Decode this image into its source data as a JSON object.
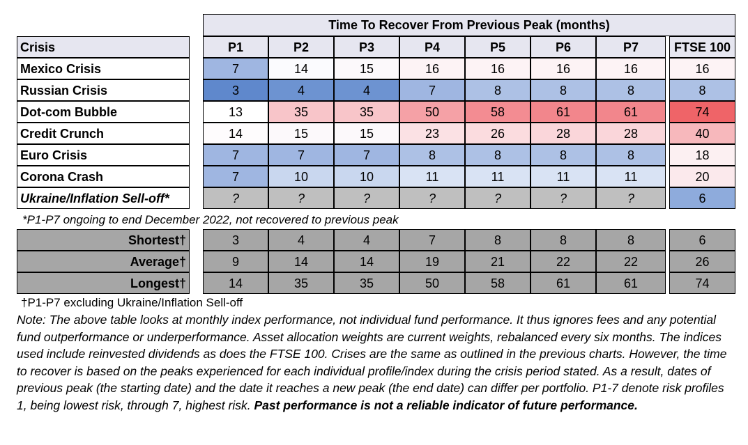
{
  "title": "Time To Recover From Previous Peak (months)",
  "columns": [
    "P1",
    "P2",
    "P3",
    "P4",
    "P5",
    "P6",
    "P7",
    "FTSE 100"
  ],
  "crisis_header": "Crisis",
  "rows": [
    {
      "name": "Mexico Crisis",
      "values": [
        "7",
        "14",
        "15",
        "16",
        "16",
        "16",
        "16",
        "16"
      ],
      "colors": [
        "#9fb6e1",
        "#fbfbfe",
        "#fcf9fb",
        "#fdf3f5",
        "#fdf3f5",
        "#fdf3f5",
        "#fdf3f5",
        "#fdf3f5"
      ]
    },
    {
      "name": "Russian Crisis",
      "values": [
        "3",
        "4",
        "4",
        "7",
        "8",
        "8",
        "8",
        "8"
      ],
      "colors": [
        "#5f88cc",
        "#6d93d1",
        "#6d93d1",
        "#9fb6e1",
        "#adc1e5",
        "#adc1e5",
        "#adc1e5",
        "#adc1e5"
      ]
    },
    {
      "name": "Dot-com Bubble",
      "values": [
        "13",
        "35",
        "35",
        "50",
        "58",
        "61",
        "61",
        "74"
      ],
      "colors": [
        "#ffffff",
        "#f8c5c9",
        "#f8c5c9",
        "#f5a1a6",
        "#f38c92",
        "#f2868c",
        "#f2868c",
        "#ef6468"
      ]
    },
    {
      "name": "Credit Crunch",
      "values": [
        "14",
        "15",
        "15",
        "23",
        "26",
        "28",
        "28",
        "40"
      ],
      "colors": [
        "#fefcfd",
        "#fcf9fb",
        "#fcf9fb",
        "#fbe1e4",
        "#fbdcdf",
        "#fad6da",
        "#fad6da",
        "#f7b8bc"
      ]
    },
    {
      "name": "Euro Crisis",
      "values": [
        "7",
        "7",
        "7",
        "8",
        "8",
        "8",
        "8",
        "18"
      ],
      "colors": [
        "#9fb6e1",
        "#9fb6e1",
        "#9fb6e1",
        "#adc1e5",
        "#adc1e5",
        "#adc1e5",
        "#adc1e5",
        "#fcf0f2"
      ]
    },
    {
      "name": "Corona Crash",
      "values": [
        "7",
        "10",
        "10",
        "11",
        "11",
        "11",
        "11",
        "20"
      ],
      "colors": [
        "#9fb6e1",
        "#c9d7ef",
        "#c9d7ef",
        "#d9e3f4",
        "#d9e3f4",
        "#d9e3f4",
        "#d9e3f4",
        "#fbe9ec"
      ]
    },
    {
      "name": "Ukraine/Inflation Sell-off*",
      "values": [
        "?",
        "?",
        "?",
        "?",
        "?",
        "?",
        "?",
        "6"
      ],
      "colors": [
        "#bfbfbf",
        "#bfbfbf",
        "#bfbfbf",
        "#bfbfbf",
        "#bfbfbf",
        "#bfbfbf",
        "#bfbfbf",
        "#8eabdc"
      ]
    }
  ],
  "footnote1": "*P1-P7 ongoing to end December 2022, not recovered to previous peak",
  "summary": [
    {
      "label": "Shortest†",
      "values": [
        "3",
        "4",
        "4",
        "7",
        "8",
        "8",
        "8",
        "6"
      ]
    },
    {
      "label": "Average†",
      "values": [
        "9",
        "14",
        "14",
        "19",
        "21",
        "22",
        "22",
        "26"
      ]
    },
    {
      "label": "Longest†",
      "values": [
        "14",
        "35",
        "35",
        "50",
        "58",
        "61",
        "61",
        "74"
      ]
    }
  ],
  "footnote2": "†P1-P7 excluding Ukraine/Inflation Sell-off",
  "note": "Note: The above table looks at monthly index performance, not individual fund performance. It thus ignores fees and any potential fund outperformance or underperformance. Asset allocation weights are current weights, rebalanced every six months. The indices used include reinvested dividends as does the FTSE 100. Crises are the same as outlined in the previous charts. However, the time to recover is based on the peaks experienced for each individual profile/index during the crisis period stated. As a result, dates of previous peak (the starting date) and the date it reaches a new peak (the end date) can differ per portfolio. P1-7 denote risk profiles 1, being lowest risk, through 7, highest risk.",
  "note_bold": "Past performance is not a reliable indicator of future performance."
}
